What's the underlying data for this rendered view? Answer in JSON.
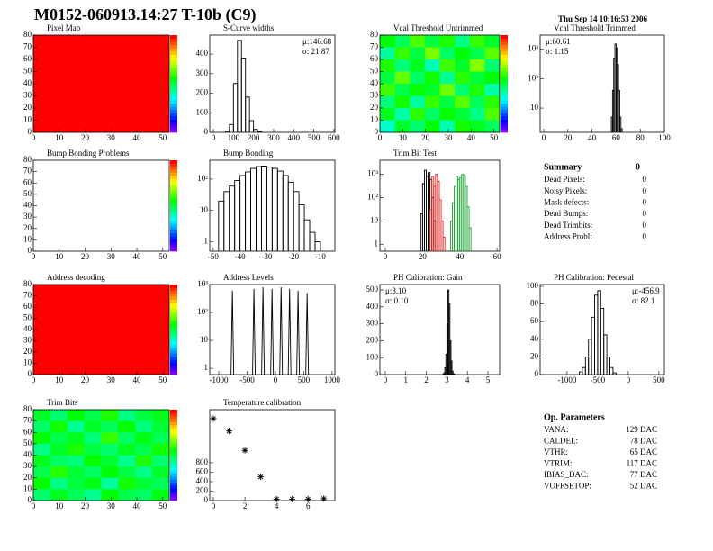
{
  "title": "M0152-060913.14:27 T-10b (C9)",
  "timestamp": "Thu Sep 14 10:16:53 2006",
  "chart_data": [
    {
      "type": "heatmap",
      "title": "Pixel Map",
      "xlim": [
        0,
        52.5
      ],
      "ylim": [
        0,
        80
      ],
      "xticks": [
        0,
        10,
        20,
        30,
        40,
        50
      ],
      "yticks": [
        0,
        10,
        20,
        30,
        40,
        50,
        60,
        70,
        80
      ],
      "zlim": [
        0,
        100
      ],
      "z": [
        [
          100
        ]
      ]
    },
    {
      "type": "histogram",
      "title": "S-Curve widths",
      "xlim": [
        -18,
        605
      ],
      "ylim": [
        0,
        497
      ],
      "xticks": [
        0,
        100,
        200,
        300,
        400,
        500,
        600
      ],
      "yticks": [
        0,
        100,
        200,
        300,
        400
      ],
      "color": "#000000",
      "bins": [
        60,
        80,
        100,
        120,
        140,
        160,
        180,
        200,
        220,
        240
      ],
      "counts": [
        5,
        40,
        250,
        470,
        380,
        180,
        60,
        15,
        3
      ],
      "stats": [
        "μ:146.68",
        "σ: 21.87"
      ],
      "stats_corner": "top-right"
    },
    {
      "type": "heatmap",
      "title": "Vcal Threshold Untrimmed",
      "xlim": [
        0,
        52.5
      ],
      "ylim": [
        0,
        80
      ],
      "xticks": [
        0,
        10,
        20,
        30,
        40,
        50
      ],
      "yticks": [
        0,
        10,
        20,
        30,
        40,
        50,
        60,
        70,
        80
      ],
      "zlim": [
        0,
        100
      ],
      "z": [
        [
          55,
          48,
          62,
          50,
          58,
          44,
          60,
          52
        ],
        [
          42,
          60,
          50,
          66,
          47,
          55,
          49,
          63
        ],
        [
          58,
          45,
          53,
          40,
          61,
          52,
          67,
          46
        ],
        [
          50,
          64,
          47,
          57,
          43,
          59,
          51,
          55
        ],
        [
          61,
          49,
          56,
          52,
          65,
          46,
          58,
          41
        ],
        [
          45,
          57,
          42,
          60,
          50,
          63,
          48,
          59
        ],
        [
          53,
          41,
          59,
          47,
          56,
          51,
          44,
          62
        ],
        [
          38,
          52,
          46,
          55,
          40,
          57,
          53,
          48
        ]
      ]
    },
    {
      "type": "histogram",
      "title": "Vcal Threshold Trimmed",
      "log_y": true,
      "xlim": [
        -3,
        100
      ],
      "ylim": [
        1.5,
        3000
      ],
      "xticks": [
        0,
        20,
        40,
        60,
        80,
        100
      ],
      "yticks": [
        10,
        {
          "value": 100,
          "label": "10²"
        },
        {
          "value": 1000,
          "label": "10³"
        }
      ],
      "color": "#000000",
      "bins": [
        56,
        57,
        58,
        59,
        60,
        61,
        62,
        63,
        64,
        65
      ],
      "counts": [
        5,
        40,
        500,
        1500,
        1100,
        300,
        40,
        5,
        2
      ],
      "stats": [
        "μ:60.61",
        "σ: 1.15"
      ],
      "stats_corner": "top-left"
    },
    {
      "type": "heatmap",
      "title": "Bump Bonding Problems",
      "xlim": [
        0,
        52.5
      ],
      "ylim": [
        0,
        80
      ],
      "xticks": [
        0,
        10,
        20,
        30,
        40,
        50
      ],
      "yticks": [
        0,
        10,
        20,
        30,
        40,
        50,
        60,
        70,
        80
      ],
      "zlim": [
        0,
        100
      ]
    },
    {
      "type": "histogram",
      "title": "Bump Bonding",
      "log_y": true,
      "xlim": [
        -51.3,
        -4.6
      ],
      "ylim": [
        0.5,
        400
      ],
      "xticks": [
        -50,
        -40,
        -30,
        -20,
        -10
      ],
      "yticks": [
        1,
        10,
        {
          "value": 100,
          "label": "10²"
        }
      ],
      "color": "#000000",
      "bins": [
        -48,
        -46,
        -44,
        -42,
        -40,
        -38,
        -36,
        -34,
        -32,
        -30,
        -28,
        -26,
        -24,
        -22,
        -20,
        -18,
        -16,
        -14,
        -12,
        -10
      ],
      "counts": [
        20,
        40,
        60,
        90,
        130,
        170,
        220,
        250,
        260,
        240,
        220,
        180,
        130,
        80,
        40,
        15,
        5,
        2,
        1
      ]
    },
    {
      "type": "histogram",
      "title": "Trim Bit Test",
      "log_y": true,
      "xlim": [
        -2.9,
        61.4
      ],
      "ylim": [
        0.5,
        4000
      ],
      "xticks": [
        0,
        20,
        40,
        60
      ],
      "yticks": [
        1,
        10,
        {
          "value": 100,
          "label": "10²"
        },
        {
          "value": 1000,
          "label": "10³"
        }
      ],
      "series": [
        {
          "color": "#000000",
          "bins": [
            19,
            20,
            21,
            22,
            23,
            24,
            25,
            26,
            27
          ],
          "counts": [
            20,
            400,
            1500,
            800,
            1200,
            600,
            100,
            10
          ]
        },
        {
          "color": "#e8201c",
          "bins": [
            24,
            25,
            26,
            27,
            28,
            29,
            30,
            31,
            32
          ],
          "counts": [
            30,
            800,
            300,
            1000,
            500,
            80,
            10,
            2
          ]
        },
        {
          "color": "#19a030",
          "bins": [
            35,
            36,
            37,
            38,
            39,
            40,
            41,
            42,
            43,
            44,
            45,
            46
          ],
          "counts": [
            10,
            60,
            300,
            800,
            600,
            700,
            1000,
            900,
            300,
            40,
            5
          ]
        }
      ]
    },
    {
      "type": "heatmap",
      "title": "Address decoding",
      "xlim": [
        0,
        52.5
      ],
      "ylim": [
        0,
        80
      ],
      "xticks": [
        0,
        10,
        20,
        30,
        40,
        50
      ],
      "yticks": [
        0,
        10,
        20,
        30,
        40,
        50,
        60,
        70,
        80
      ],
      "zlim": [
        0,
        100
      ],
      "z": [
        [
          100
        ]
      ]
    },
    {
      "type": "spikes",
      "title": "Address Levels",
      "log_y": true,
      "xlim": [
        -1160,
        1050
      ],
      "ylim": [
        0.6,
        1000
      ],
      "xticks": [
        -1000,
        -500,
        0,
        500,
        1000
      ],
      "yticks": [
        1,
        10,
        {
          "value": 100,
          "label": "10²"
        },
        {
          "value": 1000,
          "label": "10³"
        }
      ],
      "color": "#000000",
      "x": [
        -760,
        -380,
        -220,
        -60,
        100,
        250,
        400,
        560
      ],
      "values": [
        600,
        700,
        800,
        700,
        800,
        700,
        600,
        500
      ]
    },
    {
      "type": "histogram",
      "title": "PH Calibration: Gain",
      "xlim": [
        -0.26,
        5.57
      ],
      "ylim": [
        0,
        532
      ],
      "xticks": [
        0,
        1,
        2,
        3,
        4,
        5
      ],
      "yticks": [
        0,
        100,
        200,
        300,
        400,
        500
      ],
      "color": "#000000",
      "bins": [
        2.8,
        2.85,
        2.9,
        2.95,
        3.0,
        3.05,
        3.1,
        3.15,
        3.2,
        3.25,
        3.3,
        3.35,
        3.4
      ],
      "counts": [
        2,
        10,
        40,
        120,
        300,
        500,
        420,
        200,
        80,
        20,
        5,
        1
      ],
      "stats": [
        "μ:3.10",
        "σ: 0.10"
      ],
      "stats_corner": "top-left"
    },
    {
      "type": "histogram",
      "title": "PH Calibration: Pedestal",
      "xlim": [
        -1440,
        590
      ],
      "ylim": [
        0,
        102
      ],
      "xticks": [
        -1000,
        -500,
        0,
        500
      ],
      "yticks": [
        0,
        20,
        40,
        60,
        80,
        100
      ],
      "color": "#000000",
      "bins": [
        -800,
        -750,
        -700,
        -650,
        -600,
        -550,
        -500,
        -450,
        -400,
        -350,
        -300,
        -250,
        -200
      ],
      "counts": [
        3,
        8,
        20,
        40,
        65,
        90,
        95,
        75,
        45,
        20,
        8,
        2
      ],
      "stats": [
        "μ:-456.9",
        "σ: 82.1"
      ],
      "stats_corner": "top-right"
    },
    {
      "type": "heatmap",
      "title": "Trim Bits",
      "xlim": [
        0,
        52.5
      ],
      "ylim": [
        0,
        80
      ],
      "xticks": [
        0,
        10,
        20,
        30,
        40,
        50
      ],
      "yticks": [
        0,
        10,
        20,
        30,
        40,
        50,
        60,
        70,
        80
      ],
      "zlim": [
        0,
        100
      ],
      "z": [
        [
          52,
          46,
          55,
          49,
          58,
          44,
          50,
          53
        ],
        [
          47,
          57,
          43,
          52,
          48,
          56,
          45,
          51
        ],
        [
          55,
          49,
          53,
          45,
          60,
          47,
          54,
          48
        ],
        [
          44,
          52,
          58,
          50,
          46,
          53,
          49,
          57
        ],
        [
          53,
          47,
          45,
          56,
          51,
          43,
          58,
          46
        ],
        [
          49,
          59,
          51,
          47,
          55,
          50,
          44,
          52
        ],
        [
          56,
          44,
          50,
          54,
          42,
          57,
          51,
          48
        ],
        [
          46,
          53,
          48,
          43,
          55,
          49,
          47,
          54
        ]
      ]
    },
    {
      "type": "scatter",
      "title": "Temperature calibration",
      "xlim": [
        -0.23,
        7.7
      ],
      "ylim": [
        0,
        1920
      ],
      "xticks": [
        0,
        2,
        4,
        6
      ],
      "yticks": [
        0,
        200,
        400,
        600,
        800
      ],
      "color": "#000000",
      "x": [
        0,
        1,
        2,
        3,
        4,
        5,
        6,
        7
      ],
      "values": [
        1730,
        1470,
        1060,
        500,
        30,
        30,
        30,
        40
      ]
    }
  ],
  "summary": {
    "title": "Summary",
    "total": "0",
    "rows": [
      [
        "Dead Pixels:",
        "0"
      ],
      [
        "Noisy Pixels:",
        "0"
      ],
      [
        "Mask defects:",
        "0"
      ],
      [
        "Dead Bumps:",
        "0"
      ],
      [
        "Dead Trimbits:",
        "0"
      ],
      [
        "Address Probl:",
        "0"
      ]
    ]
  },
  "op_parameters": {
    "title": "Op. Parameters",
    "rows": [
      [
        "VANA:",
        "129 DAC"
      ],
      [
        "CALDEL:",
        "78 DAC"
      ],
      [
        "VTHR:",
        "65 DAC"
      ],
      [
        "VTRIM:",
        "117 DAC"
      ],
      [
        "IBIAS_DAC:",
        "77 DAC"
      ],
      [
        "VOFFSETOP:",
        "52 DAC"
      ]
    ]
  }
}
